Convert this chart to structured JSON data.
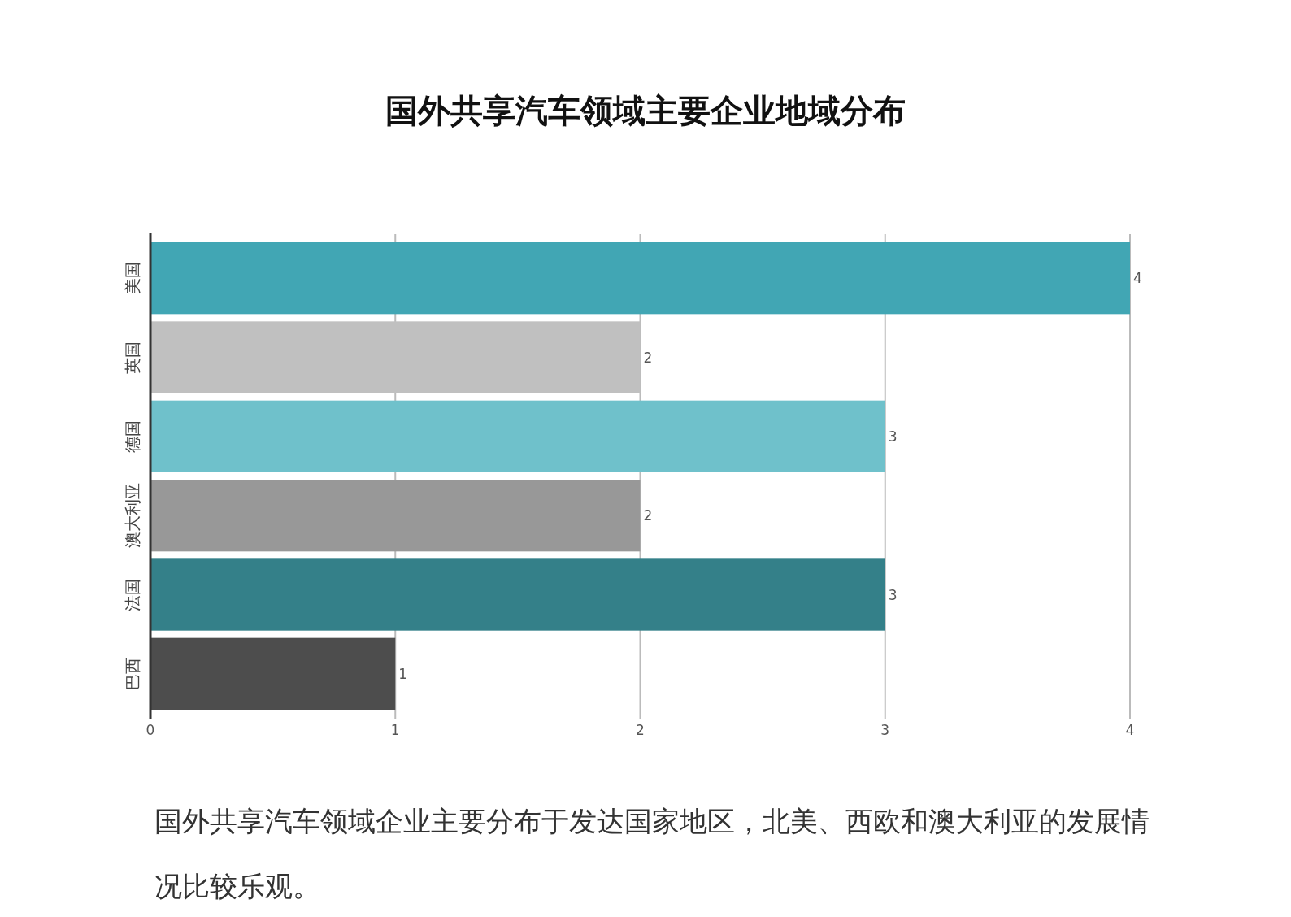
{
  "chart_data": {
    "type": "bar",
    "orientation": "horizontal",
    "title": "国外共享汽车领域主要企业地域分布",
    "categories": [
      "美国",
      "英国",
      "德国",
      "澳大利亚",
      "法国",
      "巴西"
    ],
    "values": [
      4,
      2,
      3,
      2,
      3,
      1
    ],
    "colors": [
      "#41a6b4",
      "#c0c0c0",
      "#6fc1cb",
      "#989898",
      "#348089",
      "#4d4d4d"
    ],
    "xlim": [
      0,
      4
    ],
    "xticks": [
      0,
      1,
      2,
      3,
      4
    ],
    "grid": "x",
    "data_labels": true,
    "annotations": [
      "国外共享汽车领域企业主要分布于发达国家地区，北美、西欧和澳大利亚的发展情况比较乐观。"
    ]
  }
}
